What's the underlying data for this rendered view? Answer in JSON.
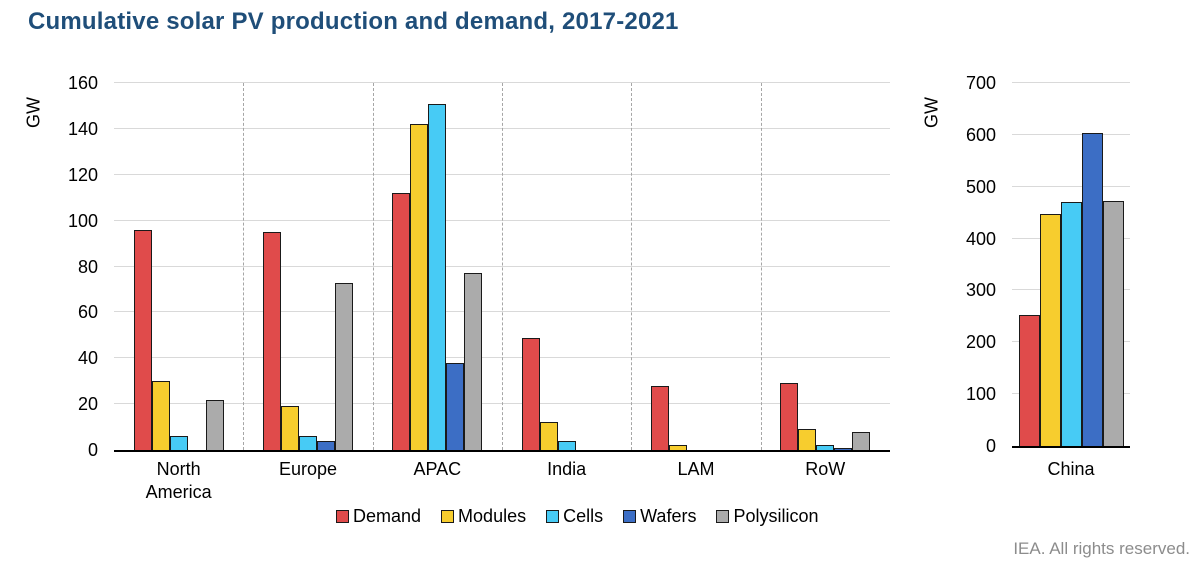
{
  "title": "Cumulative solar PV production and demand, 2017-2021",
  "footer": "IEA. All rights reserved.",
  "colors": {
    "title_text": "#1F4E79",
    "footer_text": "#8C8C8C",
    "bar_border": "#1A1A1A",
    "gridline": "#D9D9D9",
    "separator": "#A6A6A6",
    "series": {
      "Demand": "#E04B4B",
      "Modules": "#F7CD2E",
      "Cells": "#47CBF5",
      "Wafers": "#3C6EC5",
      "Polysilicon": "#ABABAB"
    }
  },
  "legend": [
    {
      "label": "Demand",
      "color": "#E04B4B"
    },
    {
      "label": "Modules",
      "color": "#F7CD2E"
    },
    {
      "label": "Cells",
      "color": "#47CBF5"
    },
    {
      "label": "Wafers",
      "color": "#3C6EC5"
    },
    {
      "label": "Polysilicon",
      "color": "#ABABAB"
    }
  ],
  "chart_data": [
    {
      "type": "bar",
      "title": "",
      "ylabel": "GW",
      "xlabel": "",
      "ylim": [
        0,
        160
      ],
      "ytick_step": 20,
      "grid": true,
      "legend_position": "bottom",
      "categories": [
        "North America",
        "Europe",
        "APAC",
        "India",
        "LAM",
        "RoW"
      ],
      "series": [
        {
          "name": "Demand",
          "color": "#E04B4B",
          "values": [
            96,
            95,
            112,
            49,
            28,
            29
          ]
        },
        {
          "name": "Modules",
          "color": "#F7CD2E",
          "values": [
            30,
            19,
            142,
            12,
            2,
            9
          ]
        },
        {
          "name": "Cells",
          "color": "#47CBF5",
          "values": [
            6,
            6,
            151,
            4,
            0,
            2
          ]
        },
        {
          "name": "Wafers",
          "color": "#3C6EC5",
          "values": [
            0,
            4,
            38,
            0,
            0,
            1
          ]
        },
        {
          "name": "Polysilicon",
          "color": "#ABABAB",
          "values": [
            22,
            73,
            77,
            0,
            0,
            8
          ]
        }
      ]
    },
    {
      "type": "bar",
      "title": "",
      "ylabel": "GW",
      "xlabel": "",
      "ylim": [
        0,
        700
      ],
      "ytick_step": 100,
      "grid": true,
      "legend_position": "none",
      "categories": [
        "China"
      ],
      "series": [
        {
          "name": "Demand",
          "color": "#E04B4B",
          "values": [
            253
          ]
        },
        {
          "name": "Modules",
          "color": "#F7CD2E",
          "values": [
            447
          ]
        },
        {
          "name": "Cells",
          "color": "#47CBF5",
          "values": [
            471
          ]
        },
        {
          "name": "Wafers",
          "color": "#3C6EC5",
          "values": [
            604
          ]
        },
        {
          "name": "Polysilicon",
          "color": "#ABABAB",
          "values": [
            473
          ]
        }
      ]
    }
  ]
}
